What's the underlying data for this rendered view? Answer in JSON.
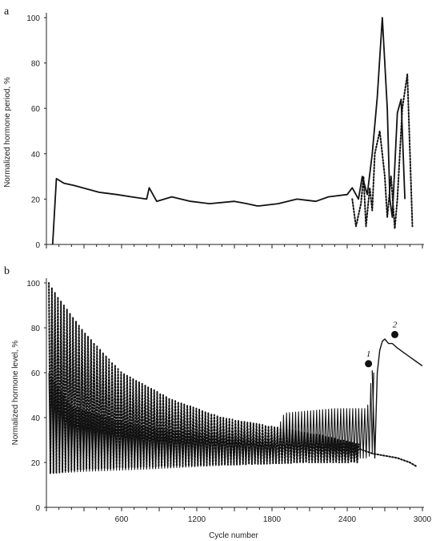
{
  "chart_data": [
    {
      "panel": "a",
      "type": "line",
      "ylabel": "Normalized hormone period, %",
      "xlim": [
        0,
        3000
      ],
      "ylim": [
        0,
        100
      ],
      "yticks": [
        0,
        20,
        40,
        60,
        80,
        100
      ],
      "grid": false,
      "series": [
        {
          "style": "solid",
          "x": [
            50,
            80,
            140,
            220,
            420,
            560,
            680,
            800,
            820,
            880,
            1000,
            1150,
            1300,
            1500,
            1600,
            1680,
            1700,
            1850,
            2000,
            2150,
            2250,
            2400,
            2440,
            2490,
            2520,
            2560,
            2600,
            2640,
            2680,
            2720,
            2740,
            2760,
            2800,
            2830,
            2860
          ],
          "y": [
            0,
            29,
            27,
            26,
            23,
            22,
            21,
            20,
            25,
            19,
            21,
            19,
            18,
            19,
            18,
            17,
            17,
            18,
            20,
            19,
            21,
            22,
            25,
            20,
            30,
            22,
            40,
            65,
            100,
            60,
            20,
            12,
            58,
            64,
            20
          ]
        },
        {
          "style": "dotted",
          "x": [
            2440,
            2470,
            2510,
            2530,
            2550,
            2580,
            2600,
            2620,
            2660,
            2700,
            2720,
            2750,
            2780,
            2800,
            2840,
            2880,
            2920
          ],
          "y": [
            20,
            8,
            18,
            30,
            8,
            25,
            15,
            40,
            50,
            30,
            12,
            30,
            7,
            20,
            60,
            75,
            8
          ]
        }
      ]
    },
    {
      "panel": "b",
      "type": "line",
      "xlabel": "Cycle number",
      "ylabel": "Normalized hormone level, %",
      "xlim": [
        0,
        3000
      ],
      "ylim": [
        0,
        100
      ],
      "xticks": [
        600,
        1200,
        1800,
        2400,
        3000
      ],
      "yticks": [
        0,
        20,
        40,
        60,
        80,
        100
      ],
      "grid": false,
      "dotted_oscillation": {
        "style": "dotted",
        "x_start": 20,
        "x_end": 2500,
        "period": 24,
        "upper_envelope": [
          [
            20,
            100
          ],
          [
            100,
            93
          ],
          [
            300,
            78
          ],
          [
            600,
            60
          ],
          [
            1000,
            48
          ],
          [
            1400,
            40
          ],
          [
            1800,
            36
          ],
          [
            2200,
            32
          ],
          [
            2500,
            28
          ]
        ],
        "lower_envelope": [
          [
            20,
            15
          ],
          [
            300,
            17
          ],
          [
            800,
            18
          ],
          [
            1500,
            19
          ],
          [
            2100,
            20
          ],
          [
            2500,
            20
          ]
        ],
        "tail": {
          "x": [
            2500,
            2600,
            2700,
            2800,
            2900,
            2960
          ],
          "y": [
            26,
            24,
            23,
            22,
            20,
            18
          ]
        }
      },
      "solid_oscillation": {
        "style": "solid",
        "x_start": 20,
        "x_end": 2620,
        "period": 24,
        "upper_envelope": [
          [
            20,
            60
          ],
          [
            200,
            45
          ],
          [
            600,
            38
          ],
          [
            1000,
            34
          ],
          [
            1600,
            32
          ],
          [
            1800,
            30
          ],
          [
            1900,
            42
          ],
          [
            2300,
            44
          ],
          [
            2560,
            44
          ],
          [
            2600,
            60
          ]
        ],
        "lower_envelope": [
          [
            20,
            15
          ],
          [
            300,
            16
          ],
          [
            800,
            17
          ],
          [
            1500,
            19
          ],
          [
            1800,
            20
          ],
          [
            2100,
            21
          ],
          [
            2560,
            22
          ],
          [
            2620,
            25
          ]
        ],
        "tail": {
          "x": [
            2600,
            2620,
            2640,
            2660,
            2680,
            2700,
            2730,
            2760,
            2800,
            2850,
            2900,
            2950,
            3000
          ],
          "y": [
            61,
            22,
            60,
            70,
            74,
            75,
            73,
            73,
            71,
            69,
            67,
            65,
            63
          ]
        }
      },
      "markers": [
        {
          "label": "1",
          "x": 2570,
          "y": 64
        },
        {
          "label": "2",
          "x": 2780,
          "y": 77
        }
      ]
    }
  ],
  "panel_a": {
    "letter": "a",
    "ylabel": "Normalized hormone period, %"
  },
  "panel_b": {
    "letter": "b",
    "ylabel": "Normalized hormone level, %",
    "xlabel": "Cycle number"
  },
  "colors": {
    "line": "#111111",
    "axis": "#222222"
  }
}
